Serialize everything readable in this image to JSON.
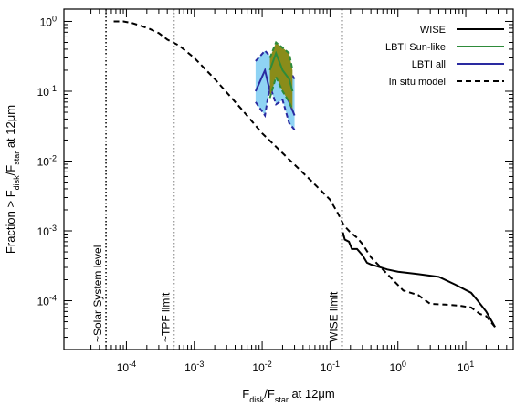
{
  "chart_data": {
    "type": "line",
    "title": "",
    "xlabel": {
      "prefix": "F",
      "sub1": "disk",
      "mid": "/F",
      "sub2": "star",
      "suffix": " at 12μm"
    },
    "ylabel": {
      "prefix": "Fraction > F",
      "sub1": "disk",
      "mid": "/F",
      "sub2": "star",
      "suffix": " at 12μm"
    },
    "xscale": "log",
    "yscale": "log",
    "xlim": [
      1.2e-05,
      50
    ],
    "ylim": [
      2e-05,
      1.5
    ],
    "grid": false,
    "xticks": [
      {
        "value": 0.0001,
        "base": "10",
        "exp": "-4"
      },
      {
        "value": 0.001,
        "base": "10",
        "exp": "-3"
      },
      {
        "value": 0.01,
        "base": "10",
        "exp": "-2"
      },
      {
        "value": 0.1,
        "base": "10",
        "exp": "-1"
      },
      {
        "value": 1,
        "base": "10",
        "exp": "0"
      },
      {
        "value": 10,
        "base": "10",
        "exp": "1"
      }
    ],
    "yticks": [
      {
        "value": 0.0001,
        "base": "10",
        "exp": "-4"
      },
      {
        "value": 0.001,
        "base": "10",
        "exp": "-3"
      },
      {
        "value": 0.01,
        "base": "10",
        "exp": "-2"
      },
      {
        "value": 0.1,
        "base": "10",
        "exp": "-1"
      },
      {
        "value": 1,
        "base": "10",
        "exp": "0"
      }
    ],
    "legend_position": "top-right",
    "series": [
      {
        "name": "WISE",
        "color": "#000000",
        "style": "solid",
        "x": [
          0.155,
          0.165,
          0.19,
          0.21,
          0.25,
          0.3,
          0.35,
          0.4,
          0.5,
          0.7,
          1.0,
          2.0,
          4.0,
          7.0,
          12.0,
          15.0,
          20.0,
          27.0
        ],
        "y": [
          0.00095,
          0.00075,
          0.0007,
          0.00055,
          0.00055,
          0.00045,
          0.00035,
          0.00033,
          0.00031,
          0.00028,
          0.00026,
          0.00024,
          0.00022,
          0.00017,
          0.00013,
          0.0001,
          7e-05,
          4.2e-05
        ]
      },
      {
        "name": "In situ model",
        "color": "#000000",
        "style": "dashed",
        "x": [
          6.5e-05,
          9e-05,
          0.00012,
          0.00016,
          0.00022,
          0.0003,
          0.0004,
          0.0006,
          0.001,
          0.002,
          0.005,
          0.01,
          0.02,
          0.05,
          0.1,
          0.13,
          0.16,
          0.2,
          0.25,
          0.3,
          0.4,
          0.6,
          0.8,
          1.2,
          2.0,
          3.0,
          5.0,
          8.0,
          12.0,
          16.0,
          20.0,
          27.0
        ],
        "y": [
          1.0,
          1.0,
          0.95,
          0.87,
          0.78,
          0.68,
          0.55,
          0.45,
          0.3,
          0.15,
          0.055,
          0.025,
          0.013,
          0.0055,
          0.0028,
          0.0018,
          0.0012,
          0.00095,
          0.0008,
          0.00065,
          0.00042,
          0.00028,
          0.00021,
          0.00014,
          0.00012,
          9e-05,
          8.8e-05,
          8.5e-05,
          8e-05,
          6.5e-05,
          6e-05,
          4.2e-05
        ]
      }
    ],
    "bands": [
      {
        "name": "LBTI all",
        "color": "#2a2aa0",
        "fill": "#8fd3f4",
        "x": [
          0.008,
          0.011,
          0.013,
          0.016,
          0.02,
          0.025,
          0.03
        ],
        "y_upper": [
          0.27,
          0.38,
          0.32,
          0.33,
          0.35,
          0.2,
          0.15
        ],
        "y_mid": [
          0.1,
          0.2,
          0.1,
          0.18,
          0.12,
          0.07,
          0.045
        ],
        "y_lower": [
          0.07,
          0.045,
          0.12,
          0.065,
          0.075,
          0.035,
          0.028
        ]
      },
      {
        "name": "LBTI Sun-like",
        "color": "#2e8b3a",
        "fill": "#8a8c1a",
        "x": [
          0.013,
          0.016,
          0.02,
          0.025,
          0.028
        ],
        "y_upper": [
          0.3,
          0.5,
          0.42,
          0.35,
          0.2
        ],
        "y_mid": [
          0.2,
          0.35,
          0.2,
          0.15,
          0.1
        ],
        "y_lower": [
          0.08,
          0.16,
          0.1,
          0.07,
          0.055
        ]
      }
    ],
    "vlines": [
      {
        "x": 5e-05,
        "label": "~Solar System level"
      },
      {
        "x": 0.0005,
        "label": "~TPF limit"
      },
      {
        "x": 0.15,
        "label": "WISE limit"
      }
    ],
    "legend": [
      {
        "label": "WISE",
        "color": "#000000",
        "style": "solid"
      },
      {
        "label": "LBTI Sun-like",
        "color": "#2e8b3a",
        "style": "solid"
      },
      {
        "label": "LBTI all",
        "color": "#2a2aa0",
        "style": "solid"
      },
      {
        "label": "In situ model",
        "color": "#000000",
        "style": "dashed"
      }
    ]
  }
}
